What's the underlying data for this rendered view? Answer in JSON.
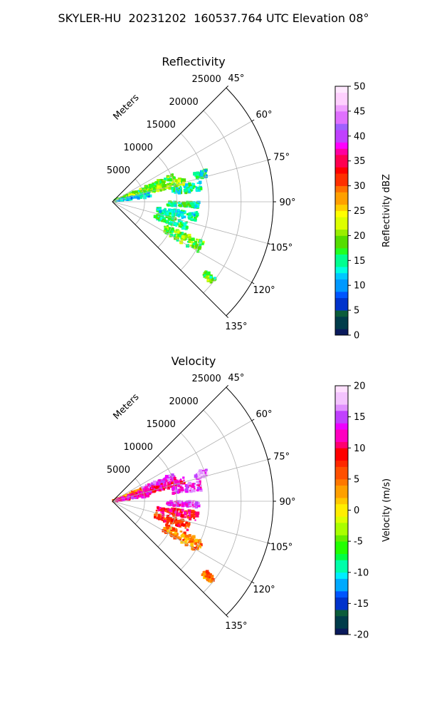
{
  "suptitle": "SKYLER-HU  20231202  160537.764 UTC Elevation 08°",
  "chart_data": [
    {
      "type": "radar_sector_ppi",
      "title": "Reflectivity",
      "range_label": "Meters",
      "range_ticks": [
        5000,
        10000,
        15000,
        20000,
        25000
      ],
      "range_max": 25000,
      "azimuth_range": [
        45,
        135
      ],
      "azimuth_ticks": [
        "45°",
        "60°",
        "75°",
        "90°",
        "105°",
        "120°",
        "135°"
      ],
      "grid": true,
      "colorbar": {
        "label": "Reflectivity dBZ",
        "ticks": [
          0,
          5,
          10,
          15,
          20,
          25,
          30,
          35,
          40,
          45,
          50
        ],
        "vmin": 0,
        "vmax": 50,
        "levels": 40,
        "colors": [
          "#0a1a5c",
          "#003c4a",
          "#0b5c3a",
          "#0033cc",
          "#0055ff",
          "#0099ff",
          "#00c8ff",
          "#00ffe0",
          "#00ff90",
          "#22ff22",
          "#55dd00",
          "#99ee00",
          "#ddff00",
          "#ffff00",
          "#ffd000",
          "#ffa000",
          "#ff7000",
          "#ff3000",
          "#ff0000",
          "#ff0050",
          "#ff00a0",
          "#ff00ff",
          "#c040ff",
          "#a060ff",
          "#e070ff",
          "#f0a0ff",
          "#ffd0ff",
          "#ffe8ff"
        ]
      },
      "echoes": [
        {
          "az": 68,
          "r0": 200,
          "r1": 10500,
          "w": 2.5,
          "dbz": 18
        },
        {
          "az": 74,
          "r0": 800,
          "r1": 11800,
          "w": 3.0,
          "dbz": 20
        },
        {
          "az": 79,
          "r0": 600,
          "r1": 6000,
          "w": 3.5,
          "dbz": 12
        },
        {
          "az": 80,
          "r0": 9500,
          "r1": 14000,
          "w": 3.0,
          "dbz": 15
        },
        {
          "az": 73,
          "r0": 13500,
          "r1": 15500,
          "w": 2.0,
          "dbz": 14
        },
        {
          "az": 92,
          "r0": 8500,
          "r1": 13500,
          "w": 2.0,
          "dbz": 15
        },
        {
          "az": 100,
          "r0": 7000,
          "r1": 13500,
          "w": 3.0,
          "dbz": 14
        },
        {
          "az": 108,
          "r0": 7000,
          "r1": 12500,
          "w": 3.0,
          "dbz": 16
        },
        {
          "az": 117,
          "r0": 9000,
          "r1": 15500,
          "w": 3.5,
          "dbz": 19
        },
        {
          "az": 128,
          "r0": 18000,
          "r1": 20000,
          "w": 1.5,
          "dbz": 18
        }
      ]
    },
    {
      "type": "radar_sector_ppi",
      "title": "Velocity",
      "range_label": "Meters",
      "range_ticks": [
        5000,
        10000,
        15000,
        20000,
        25000
      ],
      "range_max": 25000,
      "azimuth_range": [
        45,
        135
      ],
      "azimuth_ticks": [
        "45°",
        "60°",
        "75°",
        "90°",
        "105°",
        "120°",
        "135°"
      ],
      "grid": true,
      "colorbar": {
        "label": "Velocity (m/s)",
        "ticks": [
          -20,
          -15,
          -10,
          -5,
          0,
          5,
          10,
          15,
          20
        ],
        "vmin": -20,
        "vmax": 20,
        "levels": 40,
        "colors": [
          "#0a1a5c",
          "#003c4a",
          "#0b5c3a",
          "#0033cc",
          "#0055ff",
          "#00aaff",
          "#00eeff",
          "#00ffaa",
          "#00ff44",
          "#22ff00",
          "#66ee00",
          "#aaff00",
          "#ddff00",
          "#ffee00",
          "#ffc800",
          "#ffa000",
          "#ff7800",
          "#ff5000",
          "#ff2800",
          "#ff0000",
          "#ff0070",
          "#ff00c0",
          "#ee00ff",
          "#c040ff",
          "#e090ff",
          "#f4c4ff",
          "#ffe0ff"
        ]
      },
      "echoes": [
        {
          "az": 68,
          "r0": 200,
          "r1": 5000,
          "w": 2.5,
          "v": 4
        },
        {
          "az": 68,
          "r0": 5000,
          "r1": 10500,
          "w": 2.5,
          "v": 14
        },
        {
          "az": 74,
          "r0": 800,
          "r1": 11800,
          "w": 3.0,
          "v": 11
        },
        {
          "az": 79,
          "r0": 600,
          "r1": 6000,
          "w": 3.5,
          "v": 12
        },
        {
          "az": 80,
          "r0": 9500,
          "r1": 14000,
          "w": 3.0,
          "v": 14
        },
        {
          "az": 73,
          "r0": 13500,
          "r1": 15500,
          "w": 2.0,
          "v": 16
        },
        {
          "az": 92,
          "r0": 8500,
          "r1": 13500,
          "w": 2.0,
          "v": 14
        },
        {
          "az": 100,
          "r0": 7000,
          "r1": 13500,
          "w": 3.0,
          "v": 9
        },
        {
          "az": 108,
          "r0": 7000,
          "r1": 12500,
          "w": 3.0,
          "v": 7
        },
        {
          "az": 117,
          "r0": 9000,
          "r1": 15500,
          "w": 3.5,
          "v": 4
        },
        {
          "az": 128,
          "r0": 18000,
          "r1": 20000,
          "w": 1.5,
          "v": 5
        }
      ]
    }
  ]
}
